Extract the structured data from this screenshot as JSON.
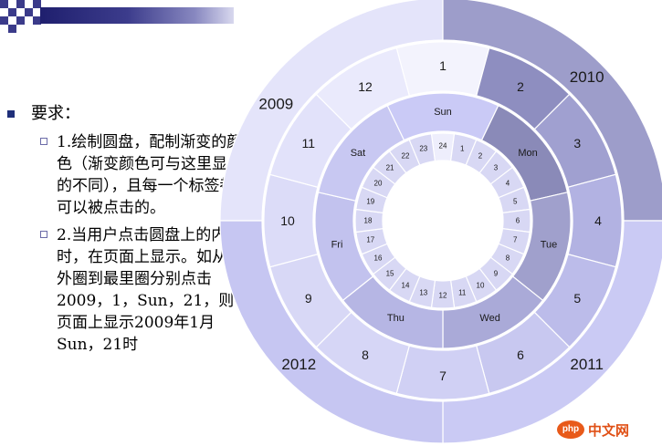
{
  "requirements": {
    "heading": "要求：",
    "items": [
      "1.绘制圆盘，配制渐变的颜色（渐变颜色可与这里显示的不同），且每一个标签都是可以被点击的。",
      "2.当用户点击圆盘上的内容时，在页面上显示。如从最外圈到最里圈分别点击2009，1，Sun，21，则在页面上显示2009年1月Sun，21时"
    ]
  },
  "wheel": {
    "years": [
      "2009",
      "2010",
      "2011",
      "2012"
    ],
    "months": [
      "1",
      "2",
      "3",
      "4",
      "5",
      "6",
      "7",
      "8",
      "9",
      "10",
      "11",
      "12"
    ],
    "days": [
      "Sun",
      "Mon",
      "Tue",
      "Wed",
      "Thu",
      "Fri",
      "Sat"
    ],
    "hours": [
      "24",
      "1",
      "2",
      "3",
      "4",
      "5",
      "6",
      "7",
      "8",
      "9",
      "10",
      "11",
      "12",
      "13",
      "14",
      "15",
      "16",
      "17",
      "18",
      "19",
      "20",
      "21",
      "22",
      "23"
    ],
    "colors": {
      "year": [
        "#e4e4fa",
        "#9d9dca",
        "#cacaf4",
        "#c6c6f2"
      ],
      "month": [
        "#f3f3fd",
        "#8e8ec0",
        "#a0a0d0",
        "#b2b2e2",
        "#bcbcea",
        "#c8c8f0",
        "#d0d0f4",
        "#d6d6f6",
        "#d8d8f6",
        "#dcdcf8",
        "#e2e2fa",
        "#eaeafc"
      ],
      "day": [
        "#cacaf6",
        "#8a8ab8",
        "#a0a0cc",
        "#aaaad8",
        "#b6b6e4",
        "#c2c2ee",
        "#c8c8f2"
      ],
      "hour": "#d8d8f4",
      "hour_highlight": "#eeeefc",
      "stroke": "#ffffff"
    }
  },
  "logo": {
    "badge": "php",
    "name": "中文网"
  }
}
